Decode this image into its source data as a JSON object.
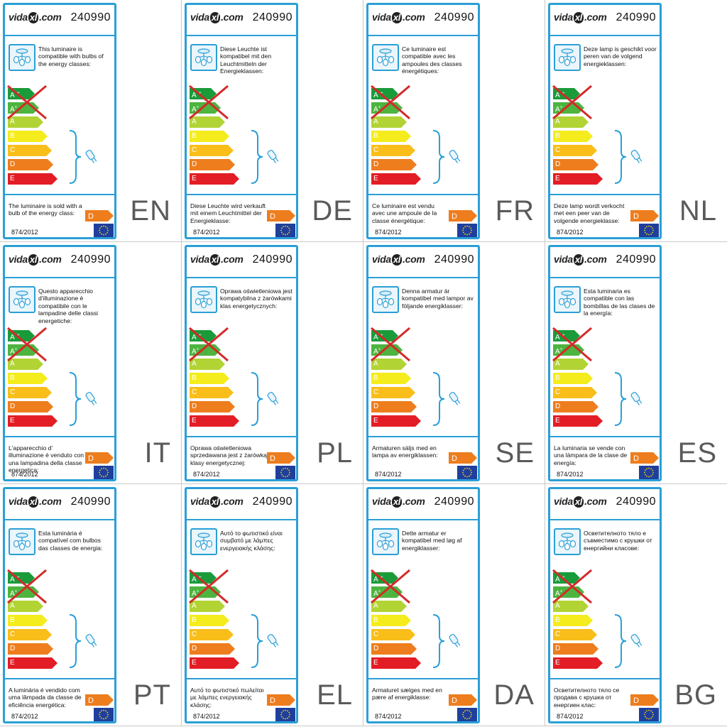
{
  "brand": {
    "logo_pre": "vida",
    "logo_x": "xl",
    "logo_post": ".com"
  },
  "product_code": "240990",
  "regulation": "874/2012",
  "energy_scale": [
    "A++",
    "A+",
    "A",
    "B",
    "C",
    "D",
    "E"
  ],
  "scale_colors": [
    "#1a9b3a",
    "#4db43f",
    "#b2d334",
    "#f4ec1c",
    "#f9be1a",
    "#ee7d1d",
    "#e31d25"
  ],
  "sold_class": "D",
  "compatible_range": [
    "B",
    "C",
    "D",
    "E"
  ],
  "excluded_range": [
    "A++",
    "A+",
    "A"
  ],
  "icons": {
    "lamp": "ceiling-lamp-icon",
    "bulb": "bulb-icon",
    "flag": "eu-flag-icon"
  },
  "accent_color": "#2a9fd6",
  "labels": [
    {
      "lang": "EN",
      "intro": "This luminaire is compatible with bulbs of the energy classes:",
      "sold": "The luminaire is sold with a bulb of the energy class:"
    },
    {
      "lang": "DE",
      "intro": "Diese Leuchte ist kompatibel mit den Leuchtmitteln der Energieklassen:",
      "sold": "Diese Leuchte wird verkauft mit einem Leuchtmittel der Energieklasse:"
    },
    {
      "lang": "FR",
      "intro": "Ce luminaire est compatible avec les ampoules des classes énergétiques:",
      "sold": "Ce luminaire est vendu avec une ampoule de la classe énergétique:"
    },
    {
      "lang": "NL",
      "intro": "Deze lamp is geschikt voor peren van de volgend energieklassen:",
      "sold": "Deze lamp wordt verkocht met een peer van de volgende energieklasse:"
    },
    {
      "lang": "IT",
      "intro": "Questo apparecchio d'illuminazione è compatibile con le lampadine delle classi energetiche:",
      "sold": "L'apparecchio d’ illuminazione è venduto con una lampadina della classe energetica:"
    },
    {
      "lang": "PL",
      "intro": "Oprawa oświetleniowa jest kompatybilna z żarówkami klas energetycznych:",
      "sold": "Oprawa oświetleniowa sprzedawana jest z żarówką klasy energetycznej:"
    },
    {
      "lang": "SE",
      "intro": "Denna armatur är kompatibel med lampor av följande energiklasser:",
      "sold": "Armaturen säljs med en lampa av energiklassen:"
    },
    {
      "lang": "ES",
      "intro": "Esta luminaria es compatible con las bombillas de las clases de la energía:",
      "sold": "La luminaria se vende con una lámpara de la clase de energía:"
    },
    {
      "lang": "PT",
      "intro": "Esta luminária é compatível com bulbos das classes de energia:",
      "sold": "A luminária é vendido com uma lâmpada da classe de eficiência energética:"
    },
    {
      "lang": "EL",
      "intro": "Αυτό το φωτιστικό είναι συμβατό με λάμπες ενεργειακής κλάσης:",
      "sold": "Αυτό το φωτιστικό πωλείται με λάμπες ενεργειακής κλάσης:"
    },
    {
      "lang": "DA",
      "intro": "Dette armatur er kompatibel med løg af energiklasser:",
      "sold": "Armaturet sælges med en pære af energiklasse:"
    },
    {
      "lang": "BG",
      "intro": "Осветителното тяло е съвместимо с крушки от енергийни класове:",
      "sold": "Осветителното тяло се продава с крушка от енергиен клас:"
    }
  ]
}
